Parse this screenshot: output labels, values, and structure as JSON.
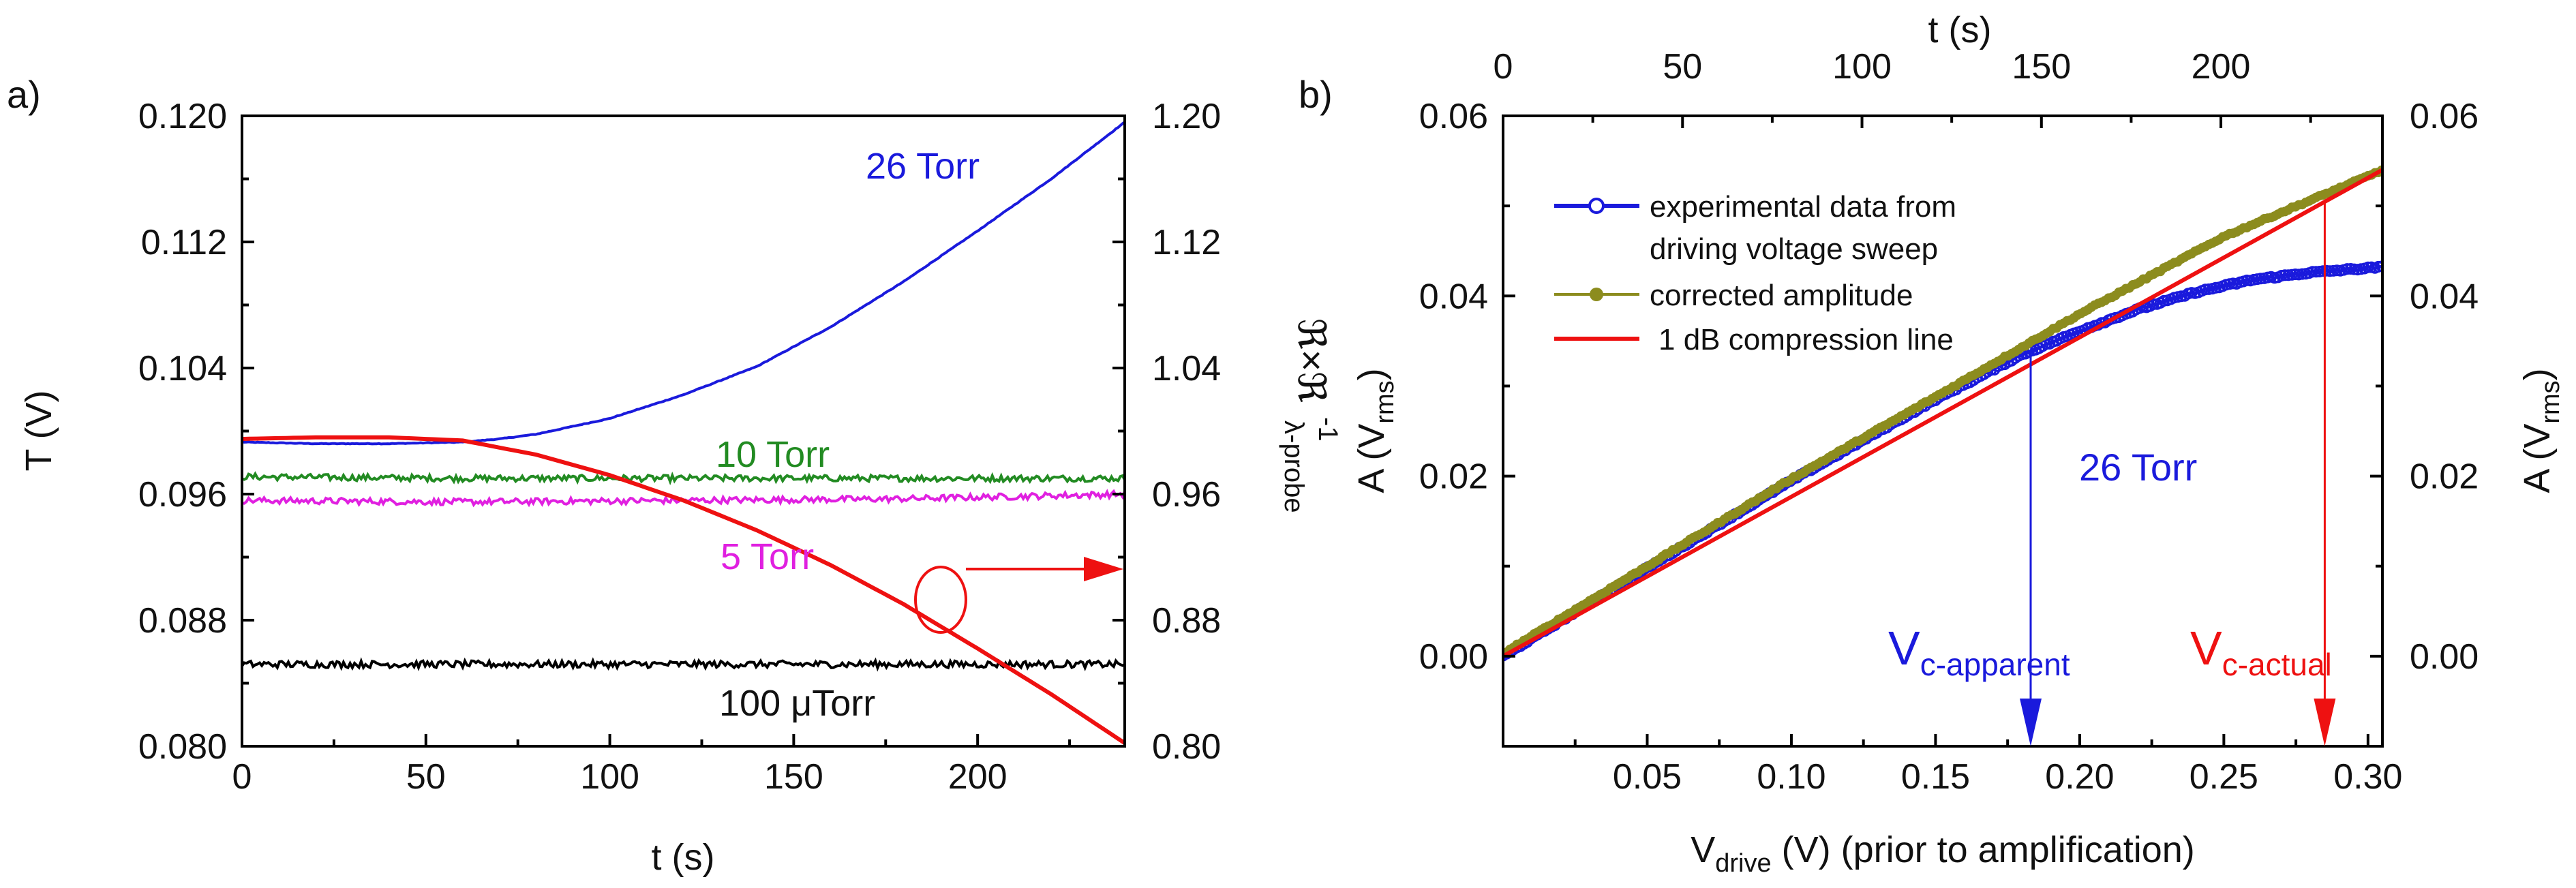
{
  "chart_data": [
    {
      "panel_label": "a)",
      "type": "line",
      "xlabel": "t (s)",
      "ylabel_left": "T (V)",
      "ylabel_right": "ℜ×ℜ",
      "ylabel_right_sub": "λ-probe",
      "ylabel_right_sup": "-1",
      "xlim": [
        0,
        240
      ],
      "ylim_left": [
        0.08,
        0.12
      ],
      "ylim_right": [
        0.8,
        1.2
      ],
      "x_ticks": [
        "0",
        "50",
        "100",
        "150",
        "200"
      ],
      "y_ticks_left": [
        "0.080",
        "0.088",
        "0.096",
        "0.104",
        "0.112",
        "0.120"
      ],
      "y_ticks_right": [
        "0.80",
        "0.88",
        "0.96",
        "1.04",
        "1.12",
        "1.20"
      ],
      "series": [
        {
          "name": "26 Torr",
          "color": "#1a1adc",
          "axis": "left",
          "noise": 2e-05,
          "x": [
            0,
            20,
            40,
            60,
            70,
            80,
            100,
            120,
            140,
            160,
            180,
            200,
            220,
            240
          ],
          "y": [
            0.0993,
            0.0992,
            0.0992,
            0.0993,
            0.0995,
            0.0998,
            0.1008,
            0.1023,
            0.1041,
            0.1066,
            0.1095,
            0.1127,
            0.116,
            0.1196
          ]
        },
        {
          "name": "10 Torr",
          "color": "#228b22",
          "axis": "left",
          "noise": 0.0002,
          "x": [
            0,
            60,
            120,
            180,
            240
          ],
          "y": [
            0.0971,
            0.097,
            0.097,
            0.097,
            0.097
          ]
        },
        {
          "name": "5 Torr",
          "color": "#e020e0",
          "axis": "left",
          "noise": 0.0002,
          "x": [
            0,
            60,
            120,
            180,
            240
          ],
          "y": [
            0.0956,
            0.0955,
            0.0956,
            0.0957,
            0.096
          ]
        },
        {
          "name": "100 μTorr",
          "color": "#000000",
          "axis": "left",
          "noise": 0.00022,
          "x": [
            0,
            60,
            120,
            180,
            240
          ],
          "y": [
            0.0852,
            0.0852,
            0.0852,
            0.0852,
            0.0852
          ]
        },
        {
          "name": "ℜ×ℜ⁻¹ λ-probe",
          "color": "#ee1111",
          "axis": "right",
          "noise": 0,
          "x": [
            0,
            20,
            40,
            60,
            80,
            100,
            120,
            140,
            160,
            180,
            200,
            220,
            240
          ],
          "y": [
            0.995,
            0.996,
            0.996,
            0.994,
            0.985,
            0.972,
            0.956,
            0.937,
            0.915,
            0.89,
            0.862,
            0.833,
            0.802
          ]
        }
      ],
      "annotations": [
        "26 Torr",
        "10 Torr",
        "5 Torr",
        "100 μTorr"
      ]
    },
    {
      "panel_label": "b)",
      "type": "line",
      "xlabel": "V",
      "xlabel_sub": "drive",
      "xlabel_rest": " (V) (prior to amplification)",
      "x2label": "t (s)",
      "ylabel": "A (V",
      "ylabel_sub": "rms",
      "ylabel_close": ")",
      "xlim": [
        0,
        0.305
      ],
      "x2lim": [
        0,
        245
      ],
      "ylim": [
        -0.01,
        0.06
      ],
      "x_ticks": [
        "0.05",
        "0.10",
        "0.15",
        "0.20",
        "0.25",
        "0.30"
      ],
      "x2_ticks": [
        "0",
        "50",
        "100",
        "150",
        "200"
      ],
      "y_ticks": [
        "0.00",
        "0.02",
        "0.04",
        "0.06"
      ],
      "series": [
        {
          "name": "experimental data from driving voltage sweep",
          "color": "#1a1adc",
          "marker": "open-circle",
          "x": [
            0,
            0.05,
            0.1,
            0.15,
            0.18,
            0.2,
            0.22,
            0.24,
            0.26,
            0.28,
            0.3,
            0.305
          ],
          "y": [
            0,
            0.0098,
            0.0195,
            0.0285,
            0.0335,
            0.0361,
            0.0385,
            0.0404,
            0.0418,
            0.0426,
            0.0431,
            0.0432
          ]
        },
        {
          "name": "corrected amplitude",
          "color": "#8c8c1e",
          "marker": "filled-circle",
          "x": [
            0,
            0.05,
            0.1,
            0.15,
            0.2,
            0.25,
            0.3,
            0.305
          ],
          "y": [
            0.0003,
            0.01,
            0.0197,
            0.0288,
            0.038,
            0.0466,
            0.0533,
            0.054
          ]
        },
        {
          "name": "1 dB compression line",
          "color": "#ee1111",
          "marker": "none",
          "x": [
            0,
            0.305
          ],
          "y": [
            0,
            0.054
          ]
        }
      ],
      "legend": [
        "experimental data from",
        "driving voltage sweep",
        "corrected amplitude",
        "1 dB compression line"
      ],
      "annotations": {
        "torr_label": "26 Torr",
        "vc_apparent_main": "V",
        "vc_apparent_sub": "c-apparent",
        "vc_apparent_x": 0.183,
        "vc_actual_main": "V",
        "vc_actual_sub": "c-actual",
        "vc_actual_x": 0.285
      }
    }
  ]
}
